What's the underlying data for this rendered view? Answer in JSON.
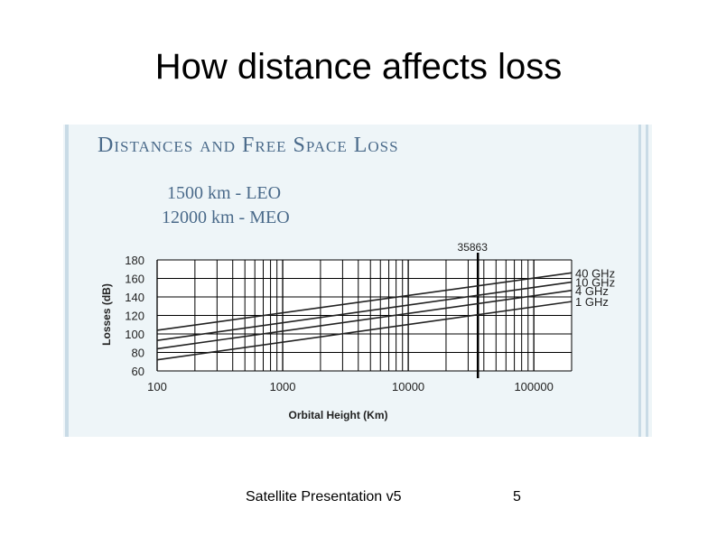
{
  "slide": {
    "title": "How distance affects loss",
    "footer_text": "Satellite Presentation v5",
    "page_number": "5"
  },
  "figure": {
    "heading": "Distances and Free Space Loss",
    "orbit_lines": [
      "1500 km  -  LEO",
      "12000 km - MEO"
    ]
  },
  "chart_data": {
    "type": "line",
    "title": "",
    "xlabel": "Orbital Height (Km)",
    "ylabel": "Losses (dB)",
    "xscale": "log",
    "xlim": [
      100,
      200000
    ],
    "ylim": [
      60,
      180
    ],
    "xticks": [
      100,
      1000,
      10000,
      100000
    ],
    "xtick_labels": [
      "100",
      "1000",
      "10000",
      "100000"
    ],
    "yticks": [
      60,
      80,
      100,
      120,
      140,
      160,
      180
    ],
    "grid": true,
    "annotation": {
      "x": 35863,
      "label": "35863"
    },
    "series": [
      {
        "name": "40 GHz",
        "x": [
          100,
          200000
        ],
        "y": [
          104,
          166
        ]
      },
      {
        "name": "10 GHz",
        "x": [
          100,
          200000
        ],
        "y": [
          93,
          156
        ]
      },
      {
        "name": "4 GHz",
        "x": [
          100,
          200000
        ],
        "y": [
          84,
          147
        ]
      },
      {
        "name": "1 GHz",
        "x": [
          100,
          200000
        ],
        "y": [
          72,
          135
        ]
      }
    ],
    "legend_position": "right",
    "colors": {
      "line": "#222222",
      "grid": "#000000",
      "heading": "#4a6a8a",
      "panel": "#eef5f8"
    }
  }
}
